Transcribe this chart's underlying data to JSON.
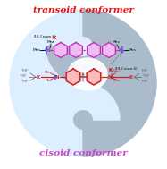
{
  "bg_color": "#ffffff",
  "title": "transoid conformer",
  "title_color": "#ee1111",
  "title_fontsize": 7.5,
  "subtitle": "cisoid conformer",
  "subtitle_color": "#cc44cc",
  "subtitle_fontsize": 7.5,
  "transoid_color": "#cc2222",
  "cisoid_color": "#bb33bb",
  "arrow_blue": "#3355ff",
  "arrow_red": "#cc2222",
  "gray_color": "#666666",
  "black_color": "#111111",
  "K_color": "#cc0000",
  "yin_light": "#ddeeff",
  "yin_dark": "#aabbcc",
  "yin_white": "#eef4fa",
  "center_white": "#ffffff"
}
